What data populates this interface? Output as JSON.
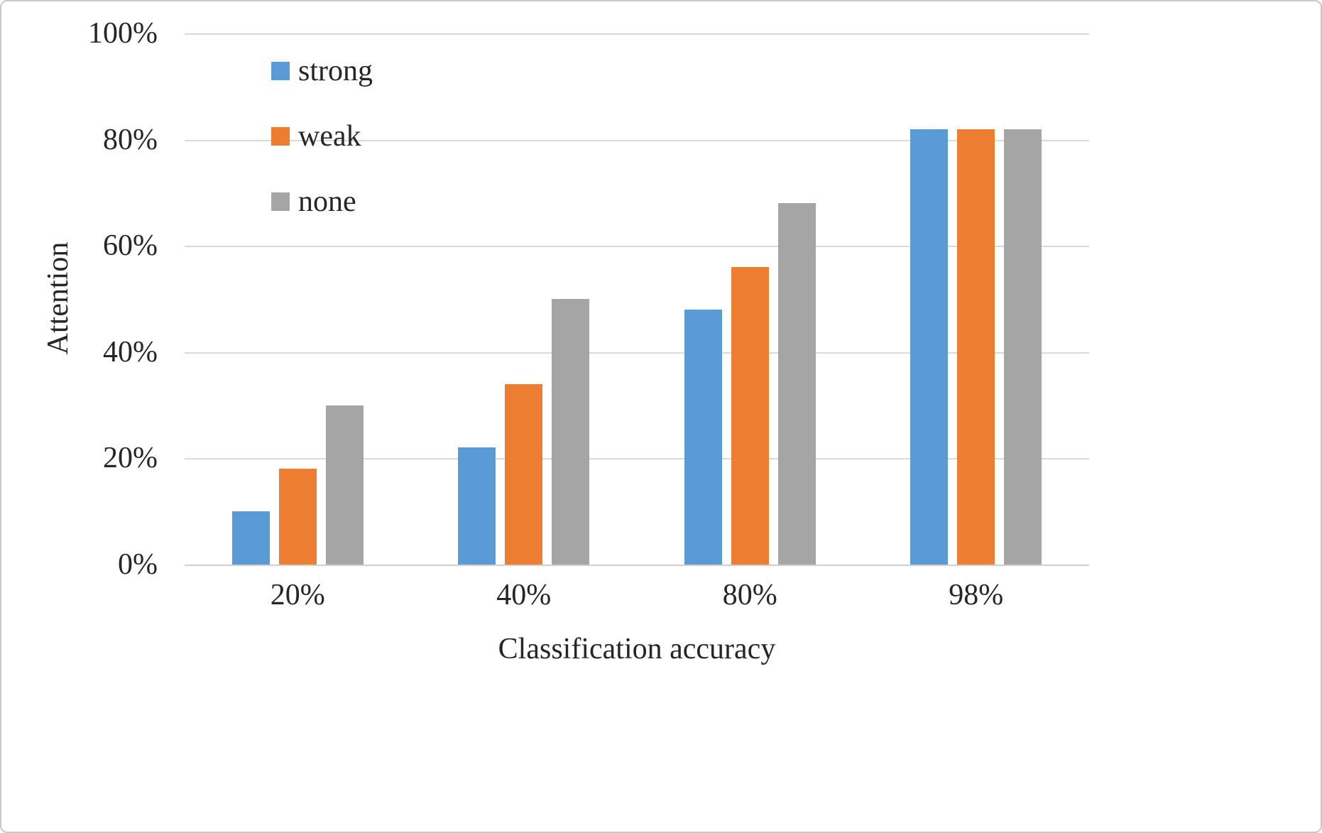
{
  "chart_data": {
    "type": "bar",
    "title": "",
    "xlabel": "Classification accuracy",
    "ylabel": "Attention",
    "categories": [
      "20%",
      "40%",
      "80%",
      "98%"
    ],
    "series": [
      {
        "name": "strong",
        "color": "#5B9BD5",
        "values": [
          10,
          22,
          48,
          82
        ]
      },
      {
        "name": "weak",
        "color": "#ED7D31",
        "values": [
          18,
          34,
          56,
          82
        ]
      },
      {
        "name": "none",
        "color": "#A5A5A5",
        "values": [
          30,
          50,
          68,
          82
        ]
      }
    ],
    "ylim": [
      0,
      100
    ],
    "yticks": [
      0,
      20,
      40,
      60,
      80,
      100
    ],
    "ytick_labels": [
      "0%",
      "20%",
      "40%",
      "60%",
      "80%",
      "100%"
    ],
    "grid": true,
    "legend_position": "top-left-inside"
  }
}
